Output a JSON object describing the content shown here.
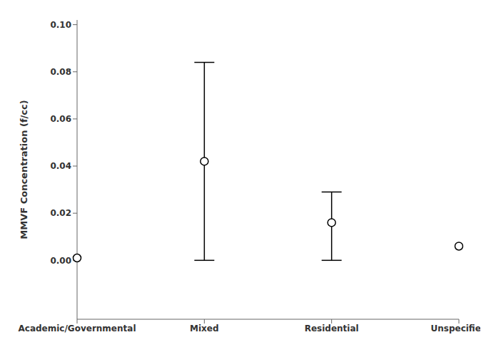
{
  "chart_data": {
    "type": "scatter",
    "ylabel": "MMVF Concentration (f/cc)",
    "categories": [
      "Academic/Governmental",
      "Mixed",
      "Residential",
      "Unspecified"
    ],
    "values": [
      0.001,
      0.042,
      0.016,
      0.006
    ],
    "err_low": [
      0.0,
      0.042,
      0.016,
      0.0
    ],
    "err_high": [
      0.0,
      0.042,
      0.013,
      0.0
    ],
    "ylim": [
      -0.025,
      0.102
    ],
    "yticks": [
      {
        "value": 0,
        "label": "0.00"
      },
      0.02,
      0.04,
      0.06,
      0.08,
      {
        "value": 0.1,
        "label": "0.10"
      }
    ],
    "color": "black",
    "marker": "circle",
    "grid": false
  }
}
